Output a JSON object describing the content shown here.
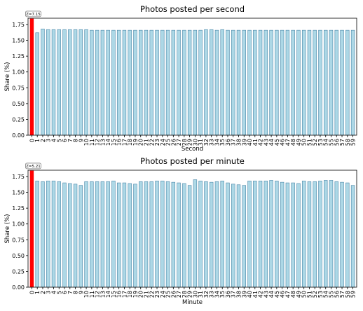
{
  "chart_data": [
    {
      "type": "bar",
      "title": "Photos posted per second",
      "xlabel": "Second",
      "ylabel": "Share (%)",
      "ylim": [
        0,
        1.85
      ],
      "yticks": [
        "0.00",
        "0.25",
        "0.50",
        "0.75",
        "1.00",
        "1.25",
        "1.50",
        "1.75"
      ],
      "categories": [
        "0",
        "1",
        "2",
        "3",
        "4",
        "5",
        "6",
        "7",
        "8",
        "9",
        "10",
        "11",
        "12",
        "13",
        "14",
        "15",
        "16",
        "17",
        "18",
        "19",
        "20",
        "21",
        "22",
        "23",
        "24",
        "25",
        "26",
        "27",
        "28",
        "29",
        "30",
        "31",
        "32",
        "33",
        "34",
        "35",
        "36",
        "37",
        "38",
        "39",
        "40",
        "41",
        "42",
        "43",
        "44",
        "45",
        "46",
        "47",
        "48",
        "49",
        "50",
        "51",
        "52",
        "53",
        "54",
        "55",
        "56",
        "57",
        "58",
        "59"
      ],
      "values": [
        1.84,
        1.62,
        1.68,
        1.67,
        1.67,
        1.67,
        1.67,
        1.67,
        1.67,
        1.67,
        1.67,
        1.66,
        1.66,
        1.66,
        1.66,
        1.66,
        1.66,
        1.66,
        1.66,
        1.66,
        1.66,
        1.66,
        1.66,
        1.66,
        1.66,
        1.66,
        1.66,
        1.66,
        1.66,
        1.66,
        1.66,
        1.66,
        1.67,
        1.67,
        1.66,
        1.67,
        1.66,
        1.66,
        1.66,
        1.66,
        1.66,
        1.66,
        1.66,
        1.66,
        1.66,
        1.66,
        1.66,
        1.66,
        1.66,
        1.66,
        1.66,
        1.66,
        1.66,
        1.66,
        1.66,
        1.66,
        1.66,
        1.66,
        1.66,
        1.66
      ],
      "highlight_index": 0,
      "annotation": "Z=7.15",
      "colors": {
        "bar": "#add8e6",
        "edge": "#4a86a8",
        "highlight": "#ff0000"
      }
    },
    {
      "type": "bar",
      "title": "Photos posted per minute",
      "xlabel": "Minute",
      "ylabel": "Share (%)",
      "ylim": [
        0,
        1.85
      ],
      "yticks": [
        "0.00",
        "0.25",
        "0.50",
        "0.75",
        "1.00",
        "1.25",
        "1.50",
        "1.75"
      ],
      "categories": [
        "0",
        "1",
        "2",
        "3",
        "4",
        "5",
        "6",
        "7",
        "8",
        "9",
        "10",
        "11",
        "12",
        "13",
        "14",
        "15",
        "16",
        "17",
        "18",
        "19",
        "20",
        "21",
        "22",
        "23",
        "24",
        "25",
        "26",
        "27",
        "28",
        "29",
        "30",
        "31",
        "32",
        "33",
        "34",
        "35",
        "36",
        "37",
        "38",
        "39",
        "40",
        "41",
        "42",
        "43",
        "44",
        "45",
        "46",
        "47",
        "48",
        "49",
        "50",
        "51",
        "52",
        "53",
        "54",
        "55",
        "56",
        "57",
        "58",
        "59"
      ],
      "values": [
        1.84,
        1.68,
        1.67,
        1.68,
        1.68,
        1.67,
        1.65,
        1.64,
        1.63,
        1.61,
        1.67,
        1.67,
        1.67,
        1.67,
        1.67,
        1.68,
        1.65,
        1.65,
        1.64,
        1.63,
        1.67,
        1.67,
        1.67,
        1.68,
        1.68,
        1.67,
        1.66,
        1.65,
        1.64,
        1.61,
        1.7,
        1.68,
        1.67,
        1.66,
        1.67,
        1.68,
        1.65,
        1.63,
        1.62,
        1.61,
        1.68,
        1.68,
        1.68,
        1.68,
        1.69,
        1.68,
        1.66,
        1.65,
        1.65,
        1.64,
        1.68,
        1.67,
        1.67,
        1.68,
        1.69,
        1.69,
        1.67,
        1.66,
        1.65,
        1.61
      ],
      "highlight_index": 0,
      "annotation": "Z=5.21",
      "colors": {
        "bar": "#add8e6",
        "edge": "#4a86a8",
        "highlight": "#ff0000"
      }
    }
  ]
}
